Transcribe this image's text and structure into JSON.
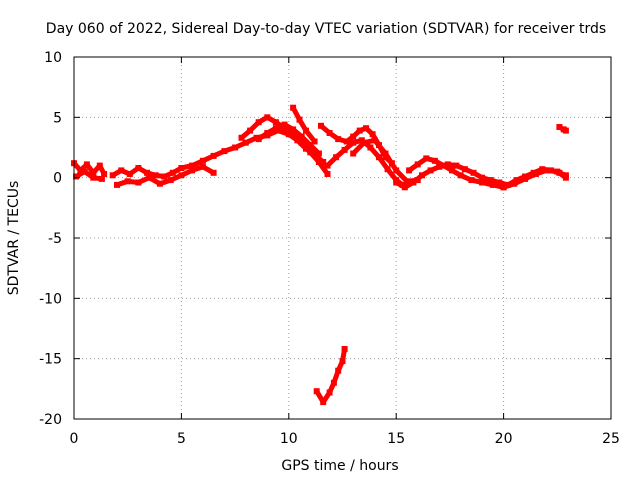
{
  "chart_data": {
    "type": "scatter",
    "title": "Day 060 of 2022, Sidereal Day-to-day VTEC variation (SDTVAR) for receiver trds",
    "xlabel": "GPS time / hours",
    "ylabel": "SDTVAR / TECUs",
    "xlim": [
      0,
      25
    ],
    "ylim": [
      -20,
      10
    ],
    "xticks": [
      0,
      5,
      10,
      15,
      20,
      25
    ],
    "yticks": [
      -20,
      -15,
      -10,
      -5,
      0,
      5,
      10
    ],
    "grid": true,
    "series": [
      {
        "name": "SDTVAR",
        "color": "#ff0000",
        "traces": [
          {
            "x": [
              0.0,
              0.3,
              0.6,
              0.9,
              1.2,
              1.4
            ],
            "y": [
              1.2,
              0.6,
              1.1,
              0.4,
              1.0,
              0.3
            ]
          },
          {
            "x": [
              0.1,
              0.5,
              0.9,
              1.3
            ],
            "y": [
              0.1,
              0.5,
              0.0,
              -0.1
            ]
          },
          {
            "x": [
              1.8,
              2.2,
              2.6,
              3.0,
              3.4,
              3.8,
              4.2,
              4.6,
              5.0,
              5.5,
              6.0,
              6.5,
              7.0,
              7.5,
              8.0,
              8.5,
              9.0,
              9.5,
              10.0,
              10.4,
              10.8,
              11.2,
              11.6
            ],
            "y": [
              0.2,
              0.6,
              0.3,
              0.8,
              0.4,
              0.2,
              0.1,
              0.4,
              0.8,
              1.0,
              1.4,
              1.8,
              2.2,
              2.5,
              2.9,
              3.3,
              3.5,
              3.9,
              3.6,
              3.1,
              2.4,
              1.9,
              1.3
            ]
          },
          {
            "x": [
              2.0,
              2.5,
              3.0,
              3.5,
              4.0,
              4.5,
              5.0,
              5.5,
              6.0,
              6.5
            ],
            "y": [
              -0.6,
              -0.3,
              -0.4,
              0.0,
              -0.5,
              -0.2,
              0.2,
              0.6,
              0.9,
              0.4
            ]
          },
          {
            "x": [
              7.8,
              8.2,
              8.6,
              9.0,
              9.4,
              9.8,
              10.2,
              10.6,
              11.0,
              11.4,
              11.8
            ],
            "y": [
              3.3,
              3.9,
              4.6,
              5.0,
              4.6,
              4.1,
              3.6,
              2.9,
              2.1,
              1.3,
              0.3
            ]
          },
          {
            "x": [
              8.6,
              9.0,
              9.4,
              9.8,
              10.2,
              10.6,
              11.0,
              11.4
            ],
            "y": [
              3.2,
              3.7,
              4.1,
              4.4,
              4.0,
              3.4,
              2.7,
              2.0
            ]
          },
          {
            "x": [
              10.2,
              10.5,
              10.8,
              11.2
            ],
            "y": [
              5.8,
              4.8,
              3.9,
              3.0
            ]
          },
          {
            "x": [
              11.5,
              11.9,
              12.3,
              12.7,
              13.0,
              13.3,
              13.6,
              13.9,
              14.2,
              14.5,
              14.8
            ],
            "y": [
              4.3,
              3.7,
              3.2,
              3.0,
              3.4,
              3.9,
              4.1,
              3.6,
              2.7,
              1.7,
              1.2
            ]
          },
          {
            "x": [
              11.8,
              12.2,
              12.6,
              13.0,
              13.4,
              13.8,
              14.2,
              14.6,
              15.0,
              15.3
            ],
            "y": [
              1.0,
              1.7,
              2.3,
              2.9,
              3.1,
              2.5,
              1.7,
              0.7,
              -0.2,
              -0.6
            ]
          },
          {
            "x": [
              13.0,
              13.5,
              14.0,
              14.5,
              15.0,
              15.5,
              16.0
            ],
            "y": [
              2.0,
              2.9,
              3.1,
              2.0,
              0.6,
              -0.3,
              -0.2
            ]
          },
          {
            "x": [
              15.0,
              15.4,
              15.8,
              16.2,
              16.6,
              17.0,
              17.4,
              17.8,
              18.2,
              18.6,
              19.0,
              19.4,
              19.8,
              20.2,
              20.6,
              21.0,
              21.4,
              21.8,
              22.2,
              22.6,
              22.9
            ],
            "y": [
              -0.4,
              -0.8,
              -0.4,
              0.2,
              0.6,
              0.9,
              1.1,
              1.0,
              0.7,
              0.4,
              0.0,
              -0.2,
              -0.4,
              -0.6,
              -0.2,
              0.1,
              0.4,
              0.7,
              0.6,
              0.4,
              0.2
            ]
          },
          {
            "x": [
              15.6,
              16.0,
              16.4,
              16.8,
              17.2,
              17.6,
              18.0,
              18.5,
              19.0,
              19.5,
              20.0
            ],
            "y": [
              0.6,
              1.1,
              1.6,
              1.4,
              1.0,
              0.6,
              0.2,
              -0.2,
              -0.4,
              -0.6,
              -0.8
            ]
          },
          {
            "x": [
              20.0,
              20.5,
              21.0,
              21.5,
              22.0,
              22.5,
              22.9
            ],
            "y": [
              -0.8,
              -0.5,
              -0.1,
              0.3,
              0.6,
              0.5,
              0.0
            ]
          },
          {
            "x": [
              22.6,
              22.8,
              22.9
            ],
            "y": [
              4.2,
              4.0,
              3.9
            ]
          },
          {
            "x": [
              11.3,
              11.6,
              11.9,
              12.1,
              12.3,
              12.5,
              12.6
            ],
            "y": [
              -17.7,
              -18.6,
              -17.8,
              -17.0,
              -16.0,
              -15.2,
              -14.2
            ]
          }
        ]
      }
    ]
  }
}
